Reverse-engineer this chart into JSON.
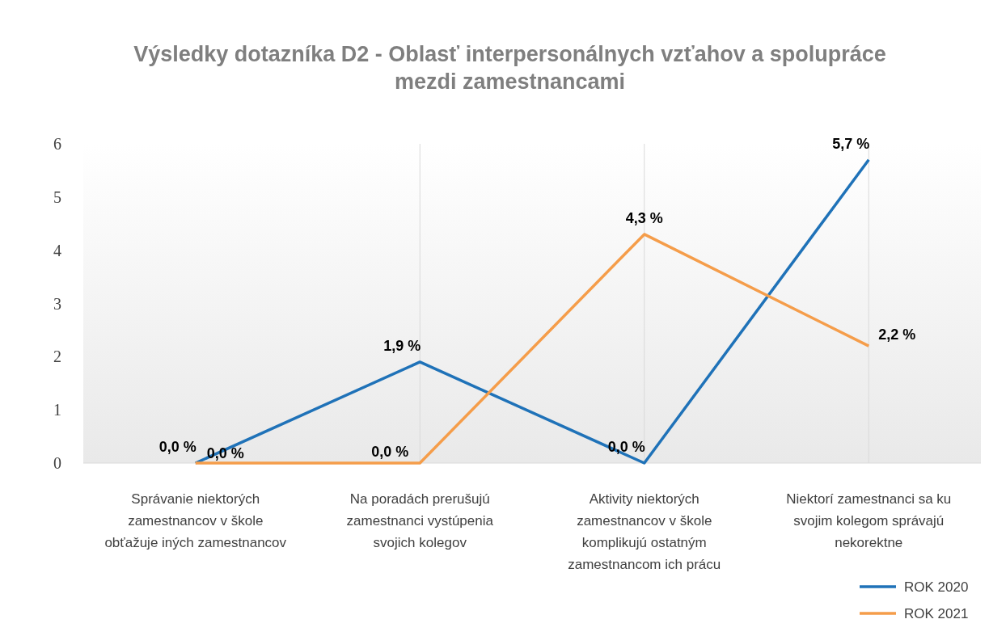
{
  "chart_data": {
    "type": "line",
    "title": "Výsledky  dotazníka D2 - Oblasť interpersonálnych vzťahov a spolupráce mezdi zamestnancami",
    "categories": [
      "Správanie niektorých zamestnancov v škole obťažuje iných zamestnancov",
      "Na poradách prerušujú zamestnanci vystúpenia svojich kolegov",
      "Aktivity niektorých zamestnancov v škole komplikujú ostatným zamestnancom ich prácu",
      "Niektorí zamestnanci sa ku svojim kolegom správajú nekorektne"
    ],
    "series": [
      {
        "name": "ROK 2020",
        "color": "#1f72b8",
        "values": [
          0,
          1.9,
          0,
          5.7
        ],
        "value_labels": [
          "0,0 %",
          "1,9 %",
          "0,0 %",
          "5,7 %"
        ]
      },
      {
        "name": "ROK 2021",
        "color": "#f59d4a",
        "values": [
          0,
          0,
          4.3,
          2.2
        ],
        "value_labels": [
          "0,0 %",
          "0,0 %",
          "4,3 %",
          "2,2 %"
        ]
      }
    ],
    "ylim": [
      0,
      6
    ],
    "yticks": [
      0,
      1,
      2,
      3,
      4,
      5,
      6
    ],
    "grid": "x",
    "legend": "bottom right",
    "marker": "none",
    "line_style": "solid"
  }
}
